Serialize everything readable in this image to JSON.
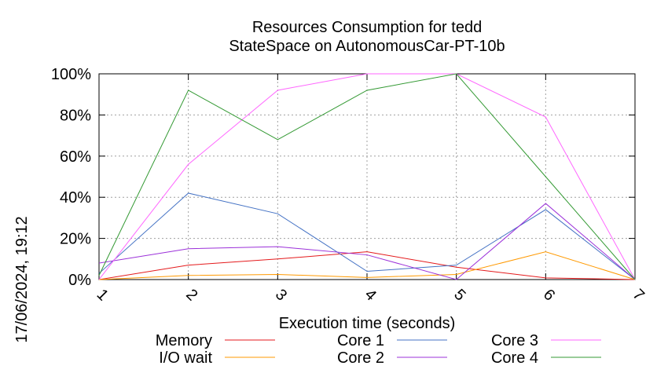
{
  "chart_data": {
    "type": "line",
    "title": "Resources Consumption for tedd",
    "subtitle": "StateSpace on AutonomousCar-PT-10b",
    "xlabel": "Execution time (seconds)",
    "ylabel": "",
    "side_label": "17/06/2024, 19:12",
    "x": [
      1,
      2,
      3,
      4,
      5,
      6,
      7
    ],
    "x_tick_labels": [
      "1",
      "2",
      "3",
      "4",
      "5",
      "6",
      "7"
    ],
    "xlim": [
      1,
      7
    ],
    "ylim": [
      0,
      100
    ],
    "y_ticks": [
      0,
      20,
      40,
      60,
      80,
      100
    ],
    "y_tick_labels": [
      "0%",
      "20%",
      "40%",
      "60%",
      "80%",
      "100%"
    ],
    "grid": true,
    "legend_position": "bottom",
    "series": [
      {
        "name": "Memory",
        "color": "#e41a1c",
        "values": [
          0,
          7,
          10,
          13.5,
          6,
          0.8,
          0
        ]
      },
      {
        "name": "I/O wait",
        "color": "#ff9900",
        "values": [
          0,
          2,
          2.5,
          1,
          2.5,
          13.5,
          0
        ]
      },
      {
        "name": "Core 1",
        "color": "#4472c4",
        "values": [
          3,
          42,
          32,
          4,
          7,
          34,
          0
        ]
      },
      {
        "name": "Core 2",
        "color": "#9b30d9",
        "values": [
          8,
          15,
          16,
          12,
          0,
          37,
          0
        ]
      },
      {
        "name": "Core 3",
        "color": "#ff66ff",
        "values": [
          0,
          56,
          92,
          100,
          100,
          79,
          0
        ]
      },
      {
        "name": "Core 4",
        "color": "#339933",
        "values": [
          2,
          92,
          68,
          92,
          100,
          50,
          0
        ]
      }
    ]
  }
}
